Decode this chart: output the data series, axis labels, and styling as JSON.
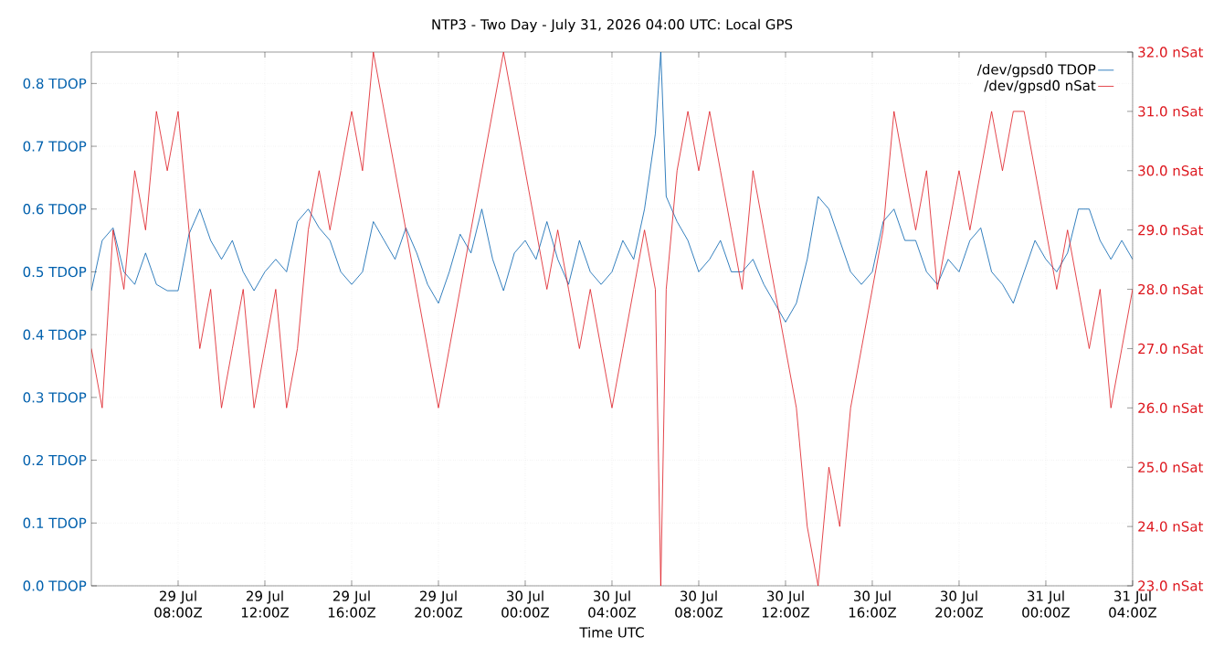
{
  "chart_data": {
    "type": "line",
    "title": "NTP3 - Two Day - July 31, 2026 04:00 UTC: Local GPS",
    "xlabel": "Time UTC",
    "x": [
      "2026-07-29T04:00",
      "2026-07-29T04:30",
      "2026-07-29T05:00",
      "2026-07-29T05:30",
      "2026-07-29T06:00",
      "2026-07-29T06:30",
      "2026-07-29T07:00",
      "2026-07-29T07:30",
      "2026-07-29T08:00",
      "2026-07-29T08:30",
      "2026-07-29T09:00",
      "2026-07-29T09:30",
      "2026-07-29T10:00",
      "2026-07-29T10:30",
      "2026-07-29T11:00",
      "2026-07-29T11:30",
      "2026-07-29T12:00",
      "2026-07-29T12:30",
      "2026-07-29T13:00",
      "2026-07-29T13:30",
      "2026-07-29T14:00",
      "2026-07-29T14:30",
      "2026-07-29T15:00",
      "2026-07-29T15:30",
      "2026-07-29T16:00",
      "2026-07-29T16:30",
      "2026-07-29T17:00",
      "2026-07-29T17:30",
      "2026-07-29T18:00",
      "2026-07-29T18:30",
      "2026-07-29T19:00",
      "2026-07-29T19:30",
      "2026-07-29T20:00",
      "2026-07-29T20:30",
      "2026-07-29T21:00",
      "2026-07-29T21:30",
      "2026-07-29T22:00",
      "2026-07-29T22:30",
      "2026-07-29T23:00",
      "2026-07-29T23:30",
      "2026-07-30T00:00",
      "2026-07-30T00:30",
      "2026-07-30T01:00",
      "2026-07-30T01:30",
      "2026-07-30T02:00",
      "2026-07-30T02:30",
      "2026-07-30T03:00",
      "2026-07-30T03:30",
      "2026-07-30T04:00",
      "2026-07-30T04:30",
      "2026-07-30T05:00",
      "2026-07-30T05:30",
      "2026-07-30T06:00",
      "2026-07-30T06:15",
      "2026-07-30T06:30",
      "2026-07-30T07:00",
      "2026-07-30T07:30",
      "2026-07-30T08:00",
      "2026-07-30T08:30",
      "2026-07-30T09:00",
      "2026-07-30T09:30",
      "2026-07-30T10:00",
      "2026-07-30T10:30",
      "2026-07-30T11:00",
      "2026-07-30T11:30",
      "2026-07-30T12:00",
      "2026-07-30T12:30",
      "2026-07-30T13:00",
      "2026-07-30T13:30",
      "2026-07-30T14:00",
      "2026-07-30T14:30",
      "2026-07-30T15:00",
      "2026-07-30T15:30",
      "2026-07-30T16:00",
      "2026-07-30T16:30",
      "2026-07-30T17:00",
      "2026-07-30T17:30",
      "2026-07-30T18:00",
      "2026-07-30T18:30",
      "2026-07-30T19:00",
      "2026-07-30T19:30",
      "2026-07-30T20:00",
      "2026-07-30T20:30",
      "2026-07-30T21:00",
      "2026-07-30T21:30",
      "2026-07-30T22:00",
      "2026-07-30T22:30",
      "2026-07-30T23:00",
      "2026-07-30T23:30",
      "2026-07-31T00:00",
      "2026-07-31T00:30",
      "2026-07-31T01:00",
      "2026-07-31T01:30",
      "2026-07-31T02:00",
      "2026-07-31T02:30",
      "2026-07-31T03:00",
      "2026-07-31T03:30",
      "2026-07-31T04:00"
    ],
    "series": [
      {
        "name": "/dev/gpsd0 TDOP",
        "color": "#0060ad",
        "axis": "y",
        "values": [
          0.47,
          0.55,
          0.57,
          0.5,
          0.48,
          0.53,
          0.48,
          0.47,
          0.47,
          0.56,
          0.6,
          0.55,
          0.52,
          0.55,
          0.5,
          0.47,
          0.5,
          0.52,
          0.5,
          0.58,
          0.6,
          0.57,
          0.55,
          0.5,
          0.48,
          0.5,
          0.58,
          0.55,
          0.52,
          0.57,
          0.53,
          0.48,
          0.45,
          0.5,
          0.56,
          0.53,
          0.6,
          0.52,
          0.47,
          0.53,
          0.55,
          0.52,
          0.58,
          0.52,
          0.48,
          0.55,
          0.5,
          0.48,
          0.5,
          0.55,
          0.52,
          0.6,
          0.72,
          0.85,
          0.62,
          0.58,
          0.55,
          0.5,
          0.52,
          0.55,
          0.5,
          0.5,
          0.52,
          0.48,
          0.45,
          0.42,
          0.45,
          0.52,
          0.62,
          0.6,
          0.55,
          0.5,
          0.48,
          0.5,
          0.58,
          0.6,
          0.55,
          0.55,
          0.5,
          0.48,
          0.52,
          0.5,
          0.55,
          0.57,
          0.5,
          0.48,
          0.45,
          0.5,
          0.55,
          0.52,
          0.5,
          0.53,
          0.6,
          0.6,
          0.55,
          0.52,
          0.55,
          0.52
        ]
      },
      {
        "name": "/dev/gpsd0 nSat",
        "color": "#dd181f",
        "axis": "y2",
        "values": [
          27,
          26,
          29,
          28,
          30,
          29,
          31,
          30,
          31,
          29,
          27,
          28,
          26,
          27,
          28,
          26,
          27,
          28,
          26,
          27,
          29,
          30,
          29,
          30,
          31,
          30,
          32,
          31,
          30,
          29,
          28,
          27,
          26,
          27,
          28,
          29,
          30,
          31,
          32,
          31,
          30,
          29,
          28,
          29,
          28,
          27,
          28,
          27,
          26,
          27,
          28,
          29,
          28,
          23,
          28,
          30,
          31,
          30,
          31,
          30,
          29,
          28,
          30,
          29,
          28,
          27,
          26,
          24,
          23,
          25,
          24,
          26,
          27,
          28,
          29,
          31,
          30,
          29,
          30,
          28,
          29,
          30,
          29,
          30,
          31,
          30,
          31,
          31,
          30,
          29,
          28,
          29,
          28,
          27,
          28,
          26,
          27,
          28
        ]
      }
    ],
    "xlim": [
      "2026-07-29T04:00",
      "2026-07-31T04:00"
    ],
    "xticks": [
      {
        "value": "2026-07-29T08:00",
        "label": "29 Jul 08:00Z"
      },
      {
        "value": "2026-07-29T12:00",
        "label": "29 Jul 12:00Z"
      },
      {
        "value": "2026-07-29T16:00",
        "label": "29 Jul 16:00Z"
      },
      {
        "value": "2026-07-29T20:00",
        "label": "29 Jul 20:00Z"
      },
      {
        "value": "2026-07-30T00:00",
        "label": "30 Jul 00:00Z"
      },
      {
        "value": "2026-07-30T04:00",
        "label": "30 Jul 04:00Z"
      },
      {
        "value": "2026-07-30T08:00",
        "label": "30 Jul 08:00Z"
      },
      {
        "value": "2026-07-30T12:00",
        "label": "30 Jul 12:00Z"
      },
      {
        "value": "2026-07-30T16:00",
        "label": "30 Jul 16:00Z"
      },
      {
        "value": "2026-07-30T20:00",
        "label": "30 Jul 20:00Z"
      },
      {
        "value": "2026-07-31T00:00",
        "label": "31 Jul 00:00Z"
      },
      {
        "value": "2026-07-31T04:00",
        "label": "31 Jul 04:00Z"
      }
    ],
    "ylim": [
      0,
      0.85
    ],
    "yticks": [
      {
        "value": 0,
        "label": "0.0 TDOP"
      },
      {
        "value": 0.1,
        "label": "0.1 TDOP"
      },
      {
        "value": 0.2,
        "label": "0.2 TDOP"
      },
      {
        "value": 0.3,
        "label": "0.3 TDOP"
      },
      {
        "value": 0.4,
        "label": "0.4 TDOP"
      },
      {
        "value": 0.5,
        "label": "0.5 TDOP"
      },
      {
        "value": 0.6,
        "label": "0.6 TDOP"
      },
      {
        "value": 0.7,
        "label": "0.7 TDOP"
      },
      {
        "value": 0.8,
        "label": "0.8 TDOP"
      }
    ],
    "y2lim": [
      23,
      32
    ],
    "y2ticks": [
      {
        "value": 23,
        "label": "23.0 nSat"
      },
      {
        "value": 24,
        "label": "24.0 nSat"
      },
      {
        "value": 25,
        "label": "25.0 nSat"
      },
      {
        "value": 26,
        "label": "26.0 nSat"
      },
      {
        "value": 27,
        "label": "27.0 nSat"
      },
      {
        "value": 28,
        "label": "28.0 nSat"
      },
      {
        "value": 29,
        "label": "29.0 nSat"
      },
      {
        "value": 30,
        "label": "30.0 nSat"
      },
      {
        "value": 31,
        "label": "31.0 nSat"
      },
      {
        "value": 32,
        "label": "32.0 nSat"
      }
    ],
    "grid": true,
    "legend": "top right",
    "marker": "none",
    "line_style": "solid"
  }
}
